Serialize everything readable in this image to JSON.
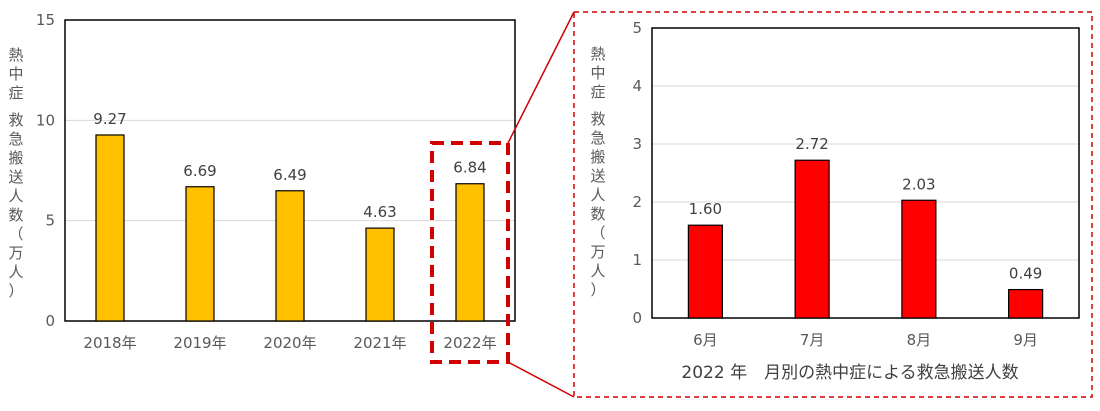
{
  "chart_data": [
    {
      "type": "bar",
      "ylabel": "熱中症 救急搬送人数（万人）",
      "ylim": [
        0,
        15
      ],
      "yticks": [
        0,
        5,
        10,
        15
      ],
      "categories": [
        "2018年",
        "2019年",
        "2020年",
        "2021年",
        "2022年"
      ],
      "values": [
        9.27,
        6.69,
        6.49,
        4.63,
        6.84
      ],
      "value_labels": [
        "9.27",
        "6.69",
        "6.49",
        "4.63",
        "6.84"
      ],
      "grid": true,
      "bar_color": "#FFC000",
      "highlight_category": "2022年",
      "highlight_color": "#D00000"
    },
    {
      "type": "bar",
      "title": "2022 年　月別の熱中症による救急搬送人数",
      "ylabel": "熱中症 救急搬送人数（万人）",
      "ylim": [
        0,
        5
      ],
      "yticks": [
        0,
        1,
        2,
        3,
        4,
        5
      ],
      "categories": [
        "6月",
        "7月",
        "8月",
        "9月"
      ],
      "values": [
        1.6,
        2.72,
        2.03,
        0.49
      ],
      "value_labels": [
        "1.60",
        "2.72",
        "2.03",
        "0.49"
      ],
      "grid": true,
      "bar_color": "#FF0000",
      "frame_color": "#D00000"
    }
  ]
}
